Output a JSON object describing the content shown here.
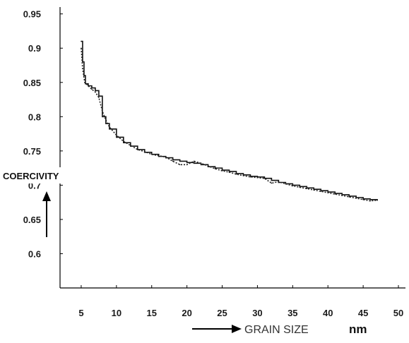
{
  "chart_data": {
    "type": "line",
    "title": "",
    "xlabel": "GRAIN SIZE",
    "xunit": "nm",
    "ylabel": "COERCIVITY",
    "x_ticks": [
      "5",
      "10",
      "15",
      "20",
      "25",
      "30",
      "35",
      "40",
      "45",
      "50"
    ],
    "y_ticks": [
      "0.95",
      "0.9",
      "0.85",
      "0.8",
      "0.75",
      "0.7",
      "0.65",
      "0.6"
    ],
    "xlim": [
      2,
      51
    ],
    "ylim": [
      0.55,
      0.96
    ],
    "grid": false,
    "series": [
      {
        "name": "",
        "style": "solid-step",
        "x": [
          5.0,
          5.2,
          5.4,
          5.6,
          6.0,
          6.5,
          7.0,
          7.5,
          8.0,
          8.5,
          9.0,
          10.0,
          11.0,
          12.0,
          13.0,
          14.0,
          15.0,
          16.0,
          17.0,
          18.0,
          19.0,
          20.0,
          21.0,
          22.0,
          23.0,
          24.0,
          25.0,
          26.0,
          27.0,
          28.0,
          29.0,
          30.0,
          31.0,
          32.0,
          33.0,
          34.0,
          35.0,
          36.0,
          37.0,
          38.0,
          39.0,
          40.0,
          41.0,
          42.0,
          43.0,
          44.0,
          45.0,
          46.0,
          47.0
        ],
        "y": [
          0.91,
          0.88,
          0.86,
          0.848,
          0.845,
          0.842,
          0.838,
          0.83,
          0.8,
          0.79,
          0.782,
          0.77,
          0.762,
          0.757,
          0.752,
          0.748,
          0.745,
          0.742,
          0.74,
          0.737,
          0.735,
          0.733,
          0.732,
          0.73,
          0.727,
          0.725,
          0.722,
          0.72,
          0.717,
          0.715,
          0.713,
          0.712,
          0.71,
          0.707,
          0.704,
          0.702,
          0.7,
          0.698,
          0.696,
          0.694,
          0.692,
          0.69,
          0.688,
          0.686,
          0.684,
          0.682,
          0.68,
          0.679,
          0.678
        ]
      },
      {
        "name": "",
        "style": "dotted",
        "x": [
          5.0,
          5.2,
          5.5,
          6.0,
          6.5,
          7.0,
          7.5,
          8.0,
          8.5,
          9.0,
          10.0,
          11.0,
          12.0,
          13.0,
          14.0,
          15.0,
          16.0,
          17.0,
          18.0,
          19.0,
          20.0,
          21.0,
          22.0,
          23.0,
          24.0,
          25.0,
          26.0,
          27.0,
          28.0,
          29.0,
          30.0,
          31.0,
          32.0,
          33.0,
          34.0,
          35.0,
          36.0,
          37.0,
          38.0,
          39.0,
          40.0,
          41.0,
          42.0,
          43.0,
          44.0,
          45.0,
          46.0,
          47.0
        ],
        "y": [
          0.9,
          0.87,
          0.85,
          0.845,
          0.84,
          0.836,
          0.828,
          0.808,
          0.795,
          0.785,
          0.773,
          0.764,
          0.758,
          0.752,
          0.749,
          0.745,
          0.743,
          0.741,
          0.735,
          0.73,
          0.73,
          0.735,
          0.732,
          0.728,
          0.724,
          0.721,
          0.719,
          0.716,
          0.714,
          0.712,
          0.711,
          0.71,
          0.703,
          0.705,
          0.702,
          0.699,
          0.697,
          0.695,
          0.693,
          0.691,
          0.689,
          0.687,
          0.685,
          0.683,
          0.681,
          0.679,
          0.677,
          0.678
        ]
      }
    ]
  }
}
